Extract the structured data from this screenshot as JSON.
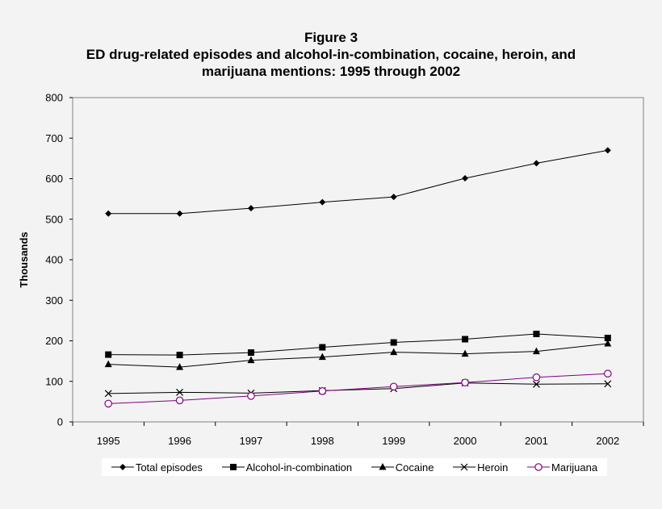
{
  "chart_data": {
    "type": "line",
    "title": "Figure 3",
    "subtitle_lines": [
      "ED drug-related episodes and alcohol-in-combination, cocaine, heroin, and",
      "marijuana mentions: 1995 through 2002"
    ],
    "xlabel": "",
    "ylabel": "Thousands",
    "categories": [
      "1995",
      "1996",
      "1997",
      "1998",
      "1999",
      "2000",
      "2001",
      "2002"
    ],
    "ylim": [
      0,
      800
    ],
    "yticks": [
      0,
      100,
      200,
      300,
      400,
      500,
      600,
      700,
      800
    ],
    "grid": false,
    "legend_position": "bottom",
    "series": [
      {
        "name": "Total episodes",
        "marker": "diamond",
        "color": "#000000",
        "values": [
          514,
          514,
          527,
          542,
          555,
          601,
          638,
          670
        ]
      },
      {
        "name": "Alcohol-in-combination",
        "marker": "square",
        "color": "#000000",
        "values": [
          166,
          165,
          171,
          184,
          196,
          204,
          217,
          207
        ]
      },
      {
        "name": "Cocaine",
        "marker": "triangle",
        "color": "#000000",
        "values": [
          142,
          135,
          152,
          160,
          172,
          168,
          174,
          193
        ]
      },
      {
        "name": "Heroin",
        "marker": "x",
        "color": "#000000",
        "values": [
          70,
          73,
          71,
          77,
          82,
          96,
          93,
          94
        ]
      },
      {
        "name": "Marijuana",
        "marker": "circle-open",
        "color": "#800080",
        "values": [
          45,
          53,
          64,
          76,
          87,
          97,
          110,
          119
        ]
      }
    ]
  }
}
